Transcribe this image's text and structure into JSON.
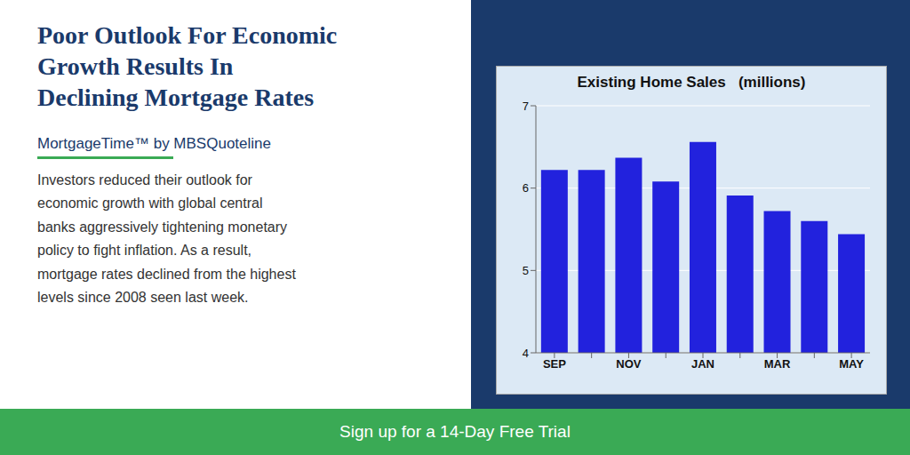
{
  "chart_data": {
    "type": "bar",
    "title": "Existing Home Sales   (millions)",
    "annotations": [
      "Poor Outlook For Economic\nGrowth Results In\nDeclining Mortgage Rates",
      "MortgageTime™ by MBSQuoteline",
      "Investors reduced their outlook for\neconomic growth with global central\nbanks aggressively tightening monetary\npolicy to fight inflation. As a result,\nmortgage rates declined from the highest\nlevels since 2008 seen last week.",
      "Sign up for a 14-Day Free Trial"
    ],
    "categories": [
      "SEP",
      null,
      "NOV",
      null,
      "JAN",
      null,
      "MAR",
      null,
      "MAY"
    ],
    "values": [
      6.22,
      6.22,
      6.37,
      6.08,
      6.56,
      5.91,
      5.72,
      5.6,
      5.44
    ],
    "color": "#2222dd",
    "ylim": [
      4,
      7
    ],
    "yticks": [
      4,
      5,
      6,
      7
    ],
    "grid": true
  }
}
